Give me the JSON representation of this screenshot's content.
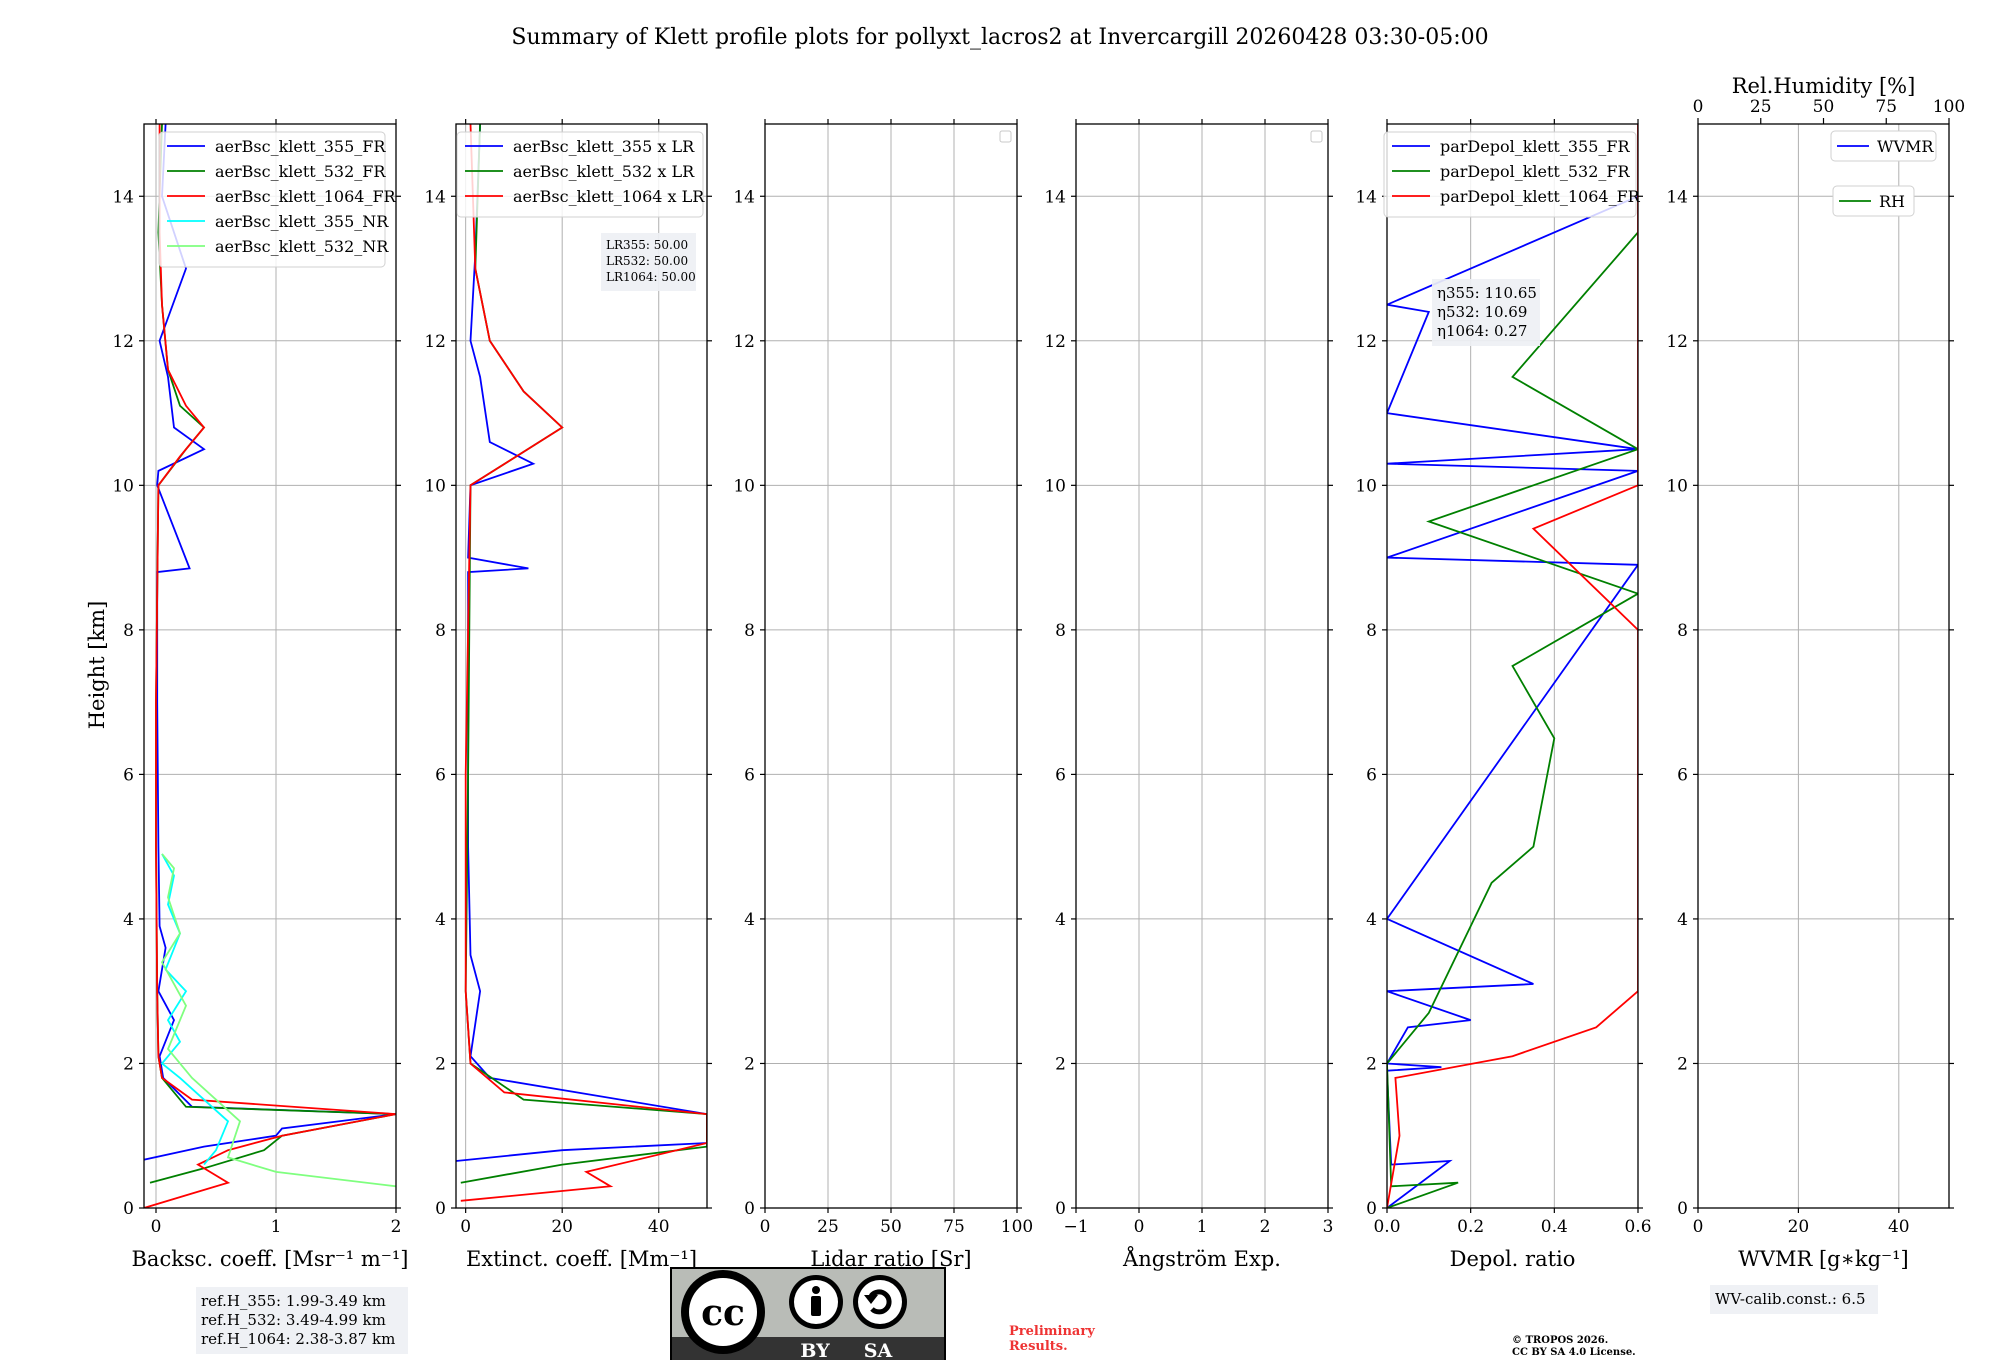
{
  "title": "Summary of Klett profile plots for pollyxt_lacros2 at Invercargill 20260428 03:30-05:00",
  "shared_y": {
    "label": "Height [km]",
    "ylim": [
      0,
      15
    ],
    "ticks": [
      0,
      2,
      4,
      6,
      8,
      10,
      12,
      14
    ]
  },
  "chart_data": [
    {
      "type": "line",
      "id": "backscatter",
      "xlabel": "Backsc. coeff. [Msr⁻¹ m⁻¹]",
      "xlim": [
        -0.1,
        2
      ],
      "xticks": [
        0,
        1,
        2
      ],
      "xtick_labels": [
        "0",
        "1",
        "2"
      ],
      "legend": [
        "aerBsc_klett_355_FR",
        "aerBsc_klett_532_FR",
        "aerBsc_klett_1064_FR",
        "aerBsc_klett_355_NR",
        "aerBsc_klett_532_NR"
      ],
      "series": [
        {
          "name": "aerBsc_klett_355_FR",
          "color": "#0000ff",
          "x": [
            -0.15,
            0.4,
            1.0,
            1.05,
            2.0,
            0.3,
            0.06,
            0.03,
            0.15,
            0.02,
            0.08,
            0.03,
            0.02,
            0.01,
            0.01,
            0.28,
            0.01,
            0.02,
            0.4,
            0.15,
            0.1,
            0.03,
            0.25,
            0.05,
            0.08
          ],
          "y": [
            0.65,
            0.85,
            1.0,
            1.1,
            1.3,
            1.4,
            1.8,
            2.1,
            2.6,
            3.0,
            3.6,
            3.9,
            5.0,
            7.0,
            8.8,
            8.85,
            10.0,
            10.2,
            10.5,
            10.8,
            11.5,
            12.0,
            13.0,
            14.0,
            15.0
          ]
        },
        {
          "name": "aerBsc_klett_532_FR",
          "color": "#008000",
          "x": [
            -0.05,
            0.4,
            0.9,
            1.05,
            2.0,
            0.25,
            0.05,
            0.02,
            0.01,
            0.0,
            0.0,
            0.02,
            0.25,
            0.4,
            0.2,
            0.1,
            0.05,
            0.02,
            0.05
          ],
          "y": [
            0.35,
            0.55,
            0.8,
            1.0,
            1.3,
            1.4,
            1.8,
            2.1,
            3.0,
            5.0,
            7.0,
            10.0,
            10.5,
            10.8,
            11.1,
            11.6,
            12.5,
            13.5,
            15.0
          ]
        },
        {
          "name": "aerBsc_klett_1064_FR",
          "color": "#ff0000",
          "x": [
            -0.1,
            0.3,
            0.6,
            0.35,
            0.6,
            1.05,
            2.0,
            0.3,
            0.05,
            0.02,
            0.01,
            0.0,
            0.0,
            0.02,
            0.2,
            0.4,
            0.25,
            0.1,
            0.05,
            0.03,
            0.03
          ],
          "y": [
            0.0,
            0.2,
            0.35,
            0.6,
            0.8,
            1.0,
            1.3,
            1.5,
            1.8,
            2.1,
            3.0,
            5.0,
            7.0,
            10.0,
            10.4,
            10.8,
            11.1,
            11.6,
            12.5,
            13.5,
            15.0
          ]
        },
        {
          "name": "aerBsc_klett_355_NR",
          "color": "#00ffff",
          "x": [
            0.4,
            0.5,
            0.6,
            0.2,
            0.05,
            0.2,
            0.1,
            0.25,
            0.08,
            0.2,
            0.1,
            0.15,
            0.05
          ],
          "y": [
            0.6,
            0.8,
            1.2,
            1.8,
            2.0,
            2.3,
            2.6,
            3.0,
            3.3,
            3.8,
            4.2,
            4.6,
            4.9
          ]
        },
        {
          "name": "aerBsc_klett_532_NR",
          "color": "#7fff7f",
          "x": [
            2.0,
            1.0,
            0.6,
            0.7,
            0.3,
            0.1,
            0.25,
            0.05,
            0.2,
            0.1,
            0.15,
            0.05
          ],
          "y": [
            0.3,
            0.5,
            0.7,
            1.2,
            1.8,
            2.2,
            2.8,
            3.4,
            3.8,
            4.3,
            4.7,
            4.9
          ]
        }
      ],
      "info_box": [
        "ref.H_355: 1.99-3.49 km",
        "ref.H_532: 3.49-4.99 km",
        "ref.H_1064: 2.38-3.87 km"
      ]
    },
    {
      "type": "line",
      "id": "extinction",
      "xlabel": "Extinct. coeff. [Mm⁻¹]",
      "xlim": [
        -2,
        50
      ],
      "xticks": [
        0,
        20,
        40
      ],
      "xtick_labels": [
        "0",
        "20",
        "40"
      ],
      "legend": [
        "aerBsc_klett_355 x LR",
        "aerBsc_klett_532 x LR",
        "aerBsc_klett_1064 x LR"
      ],
      "series": [
        {
          "name": "aerBsc_klett_355 x LR",
          "color": "#0000ff",
          "x": [
            -2,
            20,
            50,
            50,
            5,
            1,
            3,
            1,
            0.5,
            0.5,
            13,
            0.5,
            1,
            14,
            5,
            3,
            1,
            2,
            3
          ],
          "y": [
            0.65,
            0.8,
            0.9,
            1.3,
            1.8,
            2.1,
            3.0,
            3.5,
            5.0,
            8.8,
            8.85,
            9.0,
            10.0,
            10.3,
            10.6,
            11.5,
            12.0,
            13.2,
            15.0
          ]
        },
        {
          "name": "aerBsc_klett_532 x LR",
          "color": "#008000",
          "x": [
            -1,
            20,
            50,
            50,
            12,
            1,
            0,
            0.5,
            1,
            20,
            12,
            5,
            2,
            3
          ],
          "y": [
            0.35,
            0.6,
            0.85,
            1.3,
            1.5,
            2.0,
            3.0,
            6.0,
            10.0,
            10.8,
            11.3,
            12.0,
            13.0,
            15.0
          ]
        },
        {
          "name": "aerBsc_klett_1064 x LR",
          "color": "#ff0000",
          "x": [
            -1,
            30,
            25,
            50,
            50,
            8,
            1,
            0,
            0,
            1,
            20,
            12,
            5,
            2,
            1
          ],
          "y": [
            0.1,
            0.3,
            0.5,
            0.9,
            1.3,
            1.6,
            2.0,
            3.0,
            6.0,
            10.0,
            10.8,
            11.3,
            12.0,
            13.0,
            15.0
          ]
        }
      ],
      "info_box": [
        "LR355: 50.00",
        "LR532: 50.00",
        "LR1064: 50.00"
      ]
    },
    {
      "type": "line",
      "id": "lidar_ratio",
      "xlabel": "Lidar ratio [Sr]",
      "xlim": [
        0,
        100
      ],
      "xticks": [
        0,
        25,
        50,
        75,
        100
      ],
      "xtick_labels": [
        "0",
        "25",
        "50",
        "75",
        "100"
      ],
      "legend": [],
      "series": []
    },
    {
      "type": "line",
      "id": "angstrom",
      "xlabel": "Ångström Exp.",
      "xlim": [
        -1,
        3
      ],
      "xticks": [
        -1,
        0,
        1,
        2,
        3
      ],
      "xtick_labels": [
        "−1",
        "0",
        "1",
        "2",
        "3"
      ],
      "legend": [],
      "series": []
    },
    {
      "type": "line",
      "id": "depol",
      "xlabel": "Depol. ratio",
      "xlim": [
        0,
        0.6
      ],
      "xticks": [
        0,
        0.2,
        0.4,
        0.6
      ],
      "xtick_labels": [
        "0.0",
        "0.2",
        "0.4",
        "0.6"
      ],
      "legend": [
        "parDepol_klett_355_FR",
        "parDepol_klett_532_FR",
        "parDepol_klett_1064_FR"
      ],
      "series": [
        {
          "name": "parDepol_klett_355_FR",
          "color": "#0000ff",
          "x": [
            0.0,
            0.15,
            0.01,
            0.0,
            0.13,
            0.0,
            0.05,
            0.2,
            0.0,
            0.35,
            0.0,
            0.6,
            0.0,
            0.6,
            0.0,
            0.6,
            0.0,
            0.1,
            0.0,
            0.6
          ],
          "y": [
            0.0,
            0.65,
            0.6,
            1.9,
            1.95,
            2.0,
            2.5,
            2.6,
            3.0,
            3.1,
            4.0,
            8.9,
            9.0,
            10.2,
            10.3,
            10.5,
            11.0,
            12.4,
            12.5,
            14.0
          ]
        },
        {
          "name": "parDepol_klett_532_FR",
          "color": "#008000",
          "x": [
            0.0,
            0.17,
            0.01,
            0.0,
            0.1,
            0.25,
            0.35,
            0.4,
            0.3,
            0.6,
            0.1,
            0.6,
            0.3,
            0.6
          ],
          "y": [
            0.0,
            0.35,
            0.3,
            2.0,
            2.7,
            4.5,
            5.0,
            6.5,
            7.5,
            8.5,
            9.5,
            10.5,
            11.5,
            13.5
          ]
        },
        {
          "name": "parDepol_klett_1064_FR",
          "color": "#ff0000",
          "x": [
            0.0,
            0.03,
            0.02,
            0.3,
            0.5,
            0.6,
            0.6,
            0.6,
            0.6,
            0.35,
            0.6,
            0.6,
            0.6,
            0.6
          ],
          "y": [
            0.0,
            1.0,
            1.8,
            2.1,
            2.5,
            3.0,
            4.0,
            6.0,
            8.0,
            9.4,
            10.0,
            12.0,
            13.0,
            15.0
          ]
        }
      ],
      "info_box": [
        "η355: 110.65",
        "η532: 10.69",
        "η1064: 0.27"
      ]
    },
    {
      "type": "line",
      "id": "wvmr",
      "xlabel": "WVMR [g∗kg⁻¹]",
      "xlim": [
        0,
        50
      ],
      "xticks": [
        0,
        20,
        40
      ],
      "xtick_labels": [
        "0",
        "20",
        "40"
      ],
      "top_xlabel": "Rel.Humidity [%]",
      "top_xlim": [
        0,
        100
      ],
      "top_xticks": [
        0,
        25,
        50,
        75,
        100
      ],
      "top_xtick_labels": [
        "0",
        "25",
        "50",
        "75",
        "100"
      ],
      "legend": [
        "WVMR",
        "RH"
      ],
      "series": [],
      "info_box": [
        "WV-calib.const.: 6.5"
      ]
    }
  ],
  "legend_colors": {
    "aerBsc_klett_355_FR": "#0000ff",
    "aerBsc_klett_532_FR": "#008000",
    "aerBsc_klett_1064_FR": "#ff0000",
    "aerBsc_klett_355_NR": "#00ffff",
    "aerBsc_klett_532_NR": "#7fff7f",
    "aerBsc_klett_355 x LR": "#0000ff",
    "aerBsc_klett_532 x LR": "#008000",
    "aerBsc_klett_1064 x LR": "#ff0000",
    "parDepol_klett_355_FR": "#0000ff",
    "parDepol_klett_532_FR": "#008000",
    "parDepol_klett_1064_FR": "#ff0000",
    "WVMR": "#0000ff",
    "RH": "#008000"
  },
  "license_badge": {
    "cc": "cc",
    "by": "BY",
    "sa": "SA"
  },
  "preliminary": [
    "Preliminary",
    "Results."
  ],
  "copyright": [
    "© TROPOS 2026.",
    "CC BY SA 4.0 License."
  ]
}
